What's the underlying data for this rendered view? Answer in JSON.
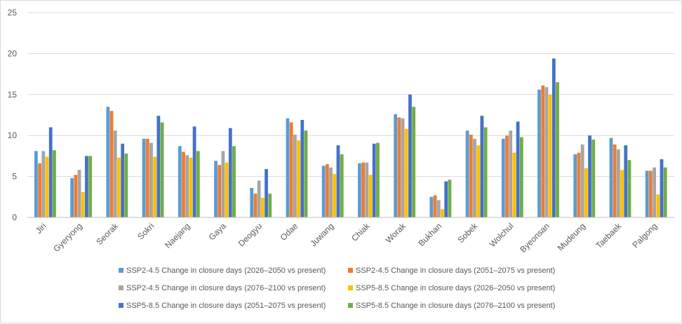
{
  "chart_data": {
    "type": "bar",
    "title": "",
    "xlabel": "",
    "ylabel": "",
    "ylim": [
      0,
      25
    ],
    "yticks": [
      0,
      5,
      10,
      15,
      20,
      25
    ],
    "grid": true,
    "legend_position": "bottom",
    "categories": [
      "Jiri",
      "Gyeryong",
      "Seorak",
      "Sokri",
      "Naejang",
      "Gaya",
      "Deogyu",
      "Odae",
      "Juwang",
      "Chiak",
      "Worak",
      "Bukhan",
      "Sobek",
      "Wolchul",
      "Byeonsan",
      "Mudeung",
      "Taebaek",
      "Palgong"
    ],
    "series": [
      {
        "name": "SSP2-4.5 Change in closure days (2026–2050 vs present)",
        "color": "#5B9BD5",
        "values": [
          8.1,
          4.8,
          13.5,
          9.6,
          8.7,
          6.9,
          3.6,
          12.1,
          6.3,
          6.6,
          12.6,
          2.5,
          10.6,
          9.6,
          15.6,
          7.7,
          9.7,
          5.7
        ]
      },
      {
        "name": "SSP2-4.5 Change in closure days (2051–2075 vs present)",
        "color": "#ED7D31",
        "values": [
          6.6,
          5.2,
          13.0,
          9.6,
          8.0,
          6.4,
          2.9,
          11.6,
          6.5,
          6.7,
          12.2,
          2.7,
          10.1,
          10.0,
          16.1,
          7.9,
          8.9,
          5.7
        ]
      },
      {
        "name": "SSP2-4.5 Change in closure days (2076–2100 vs present)",
        "color": "#A5A5A5",
        "values": [
          8.1,
          5.8,
          10.6,
          9.1,
          7.6,
          8.1,
          4.5,
          10.1,
          6.1,
          6.7,
          12.1,
          2.1,
          9.6,
          10.6,
          15.9,
          8.9,
          8.3,
          6.1
        ]
      },
      {
        "name": "SSP5-8.5 Change in closure days (2026–2050 vs present)",
        "color": "#FFC000",
        "values": [
          7.4,
          3.1,
          7.3,
          7.4,
          7.3,
          6.7,
          2.4,
          9.4,
          5.3,
          5.2,
          10.8,
          1.0,
          8.8,
          7.9,
          15.0,
          6.0,
          5.8,
          2.8
        ]
      },
      {
        "name": "SSP5-8.5 Change in closure days (2051–2075 vs present)",
        "color": "#4472C4",
        "values": [
          11.0,
          7.5,
          9.0,
          12.4,
          11.1,
          10.9,
          5.9,
          11.9,
          8.8,
          9.0,
          15.0,
          4.4,
          12.4,
          11.7,
          19.4,
          10.0,
          8.8,
          7.1
        ]
      },
      {
        "name": "SSP5-8.5 Change in closure days (2076–2100 vs present)",
        "color": "#70AD47",
        "values": [
          8.2,
          7.5,
          7.8,
          11.6,
          8.1,
          8.7,
          2.9,
          10.6,
          7.7,
          9.1,
          13.5,
          4.6,
          11.0,
          9.8,
          16.5,
          9.5,
          7.0,
          6.1
        ]
      }
    ]
  }
}
